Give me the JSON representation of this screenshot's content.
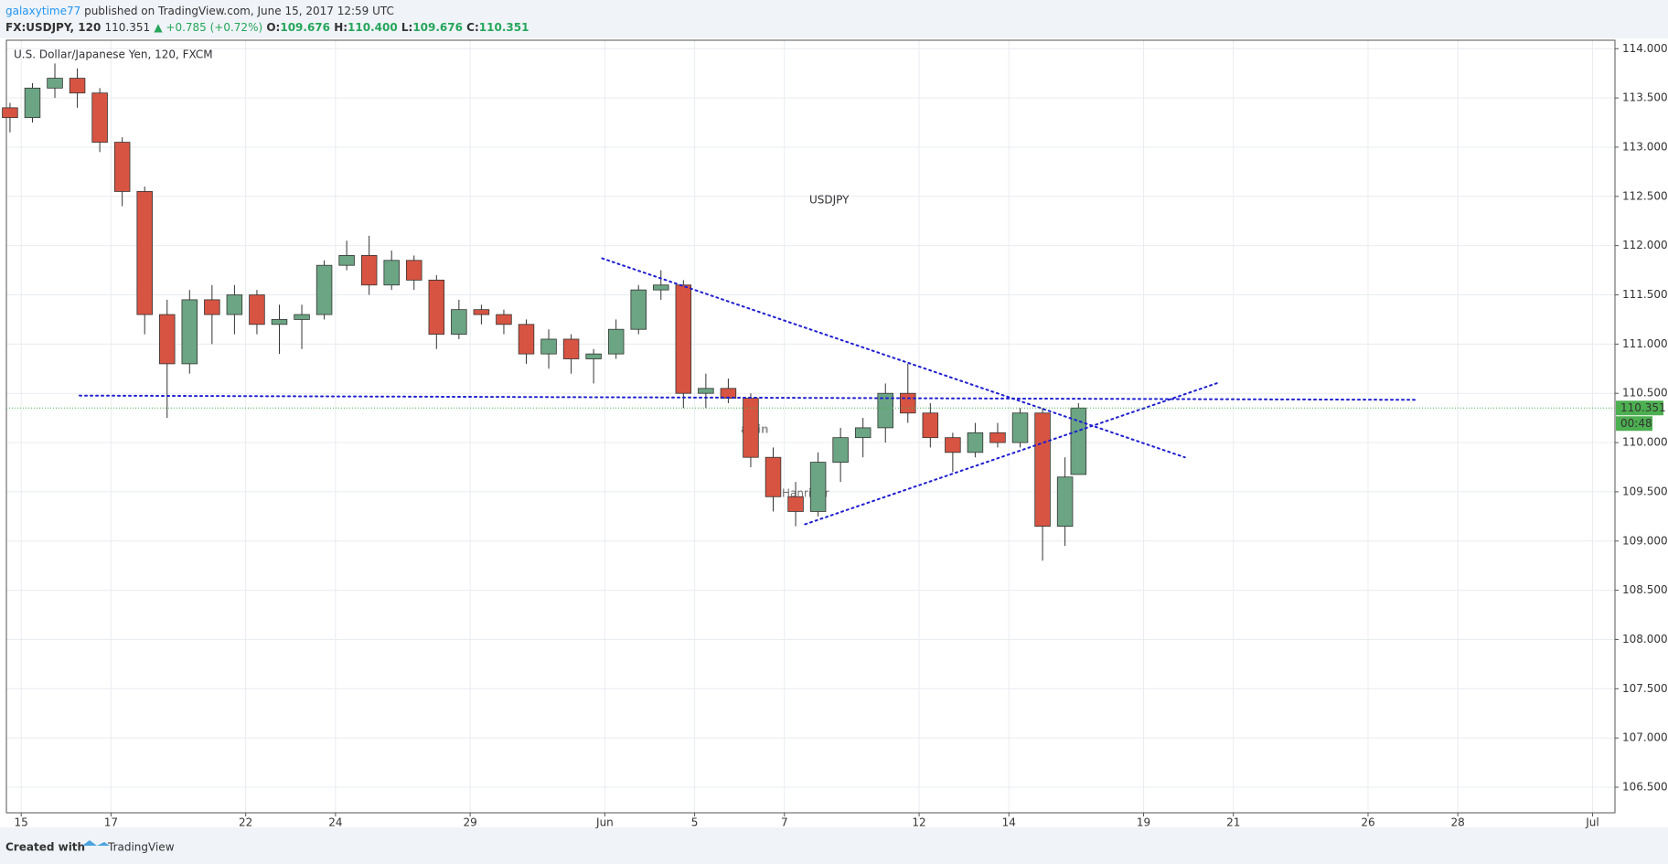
{
  "header": {
    "user": "galaxytime77",
    "published": "published on TradingView.com, June 15, 2017 12:59 UTC",
    "symbol": "FX:USDJPY, 120",
    "price": "110.351",
    "change": "▲ +0.785 (+0.72%)",
    "ohlc": [
      {
        "label": "O:",
        "value": "109.676"
      },
      {
        "label": "H:",
        "value": "110.400"
      },
      {
        "label": "L:",
        "value": "109.676"
      },
      {
        "label": "C:",
        "value": "110.351"
      }
    ]
  },
  "footer": {
    "created": "Created with",
    "brand": "TradingView"
  },
  "chart_data": {
    "type": "candlestick",
    "title": "U.S. Dollar/Japanese Yen, 120, FXCM",
    "annotation": "USDJPY",
    "watermark": [
      "altin",
      "Hanriver"
    ],
    "up_color": "#6ba583",
    "down_color": "#d75442",
    "line_color": "#1f1fd0",
    "last_color": "#4caf50",
    "grid": true,
    "x": [
      -0.25,
      0.25,
      0.75,
      1.25,
      1.75,
      2.25,
      2.75,
      3.25,
      3.75,
      4.25,
      4.75,
      5.25,
      5.75,
      6.25,
      6.75,
      7.25,
      7.75,
      8.25,
      8.75,
      9.25,
      9.75,
      10.25,
      10.75,
      11.25,
      11.75,
      12.25,
      12.75,
      13.25,
      13.75,
      14.25,
      14.75,
      15.25,
      15.75,
      16.25,
      16.75,
      17.25,
      17.75,
      18.25,
      18.75,
      19.25,
      19.75,
      20.25,
      20.75,
      21.25,
      21.75,
      22.25,
      22.75,
      23.25,
      23.55
    ],
    "open": [
      113.4,
      113.3,
      113.6,
      113.7,
      113.55,
      113.05,
      112.55,
      111.3,
      110.8,
      111.45,
      111.3,
      111.5,
      111.2,
      111.25,
      111.3,
      111.8,
      111.9,
      111.6,
      111.85,
      111.65,
      111.1,
      111.35,
      111.3,
      111.2,
      110.9,
      111.05,
      110.85,
      110.9,
      111.15,
      111.55,
      111.6,
      110.5,
      110.55,
      110.45,
      109.85,
      109.45,
      109.3,
      109.8,
      110.05,
      110.15,
      110.5,
      110.3,
      110.05,
      109.9,
      110.1,
      110.0,
      110.3,
      109.15,
      109.676
    ],
    "high": [
      113.45,
      113.65,
      113.85,
      113.8,
      113.6,
      113.1,
      112.6,
      111.45,
      111.55,
      111.6,
      111.6,
      111.55,
      111.4,
      111.4,
      111.85,
      112.05,
      112.1,
      111.95,
      111.9,
      111.7,
      111.45,
      111.4,
      111.35,
      111.25,
      111.15,
      111.1,
      110.95,
      111.25,
      111.6,
      111.75,
      111.65,
      110.7,
      110.65,
      110.5,
      109.95,
      109.6,
      109.9,
      110.15,
      110.25,
      110.6,
      110.8,
      110.4,
      110.1,
      110.2,
      110.2,
      110.35,
      110.35,
      109.85,
      110.4
    ],
    "low": [
      113.15,
      113.25,
      113.5,
      113.4,
      112.95,
      112.4,
      111.1,
      110.25,
      110.7,
      111.0,
      111.1,
      111.1,
      110.9,
      110.95,
      111.25,
      111.75,
      111.5,
      111.55,
      111.55,
      110.95,
      111.05,
      111.2,
      111.1,
      110.8,
      110.75,
      110.7,
      110.6,
      110.85,
      111.1,
      111.45,
      110.35,
      110.35,
      110.4,
      109.75,
      109.3,
      109.15,
      109.25,
      109.6,
      109.85,
      110.0,
      110.2,
      109.95,
      109.7,
      109.85,
      109.95,
      109.95,
      108.8,
      108.95,
      109.676
    ],
    "close": [
      113.3,
      113.6,
      113.7,
      113.55,
      113.05,
      112.55,
      111.3,
      110.8,
      111.45,
      111.3,
      111.5,
      111.2,
      111.25,
      111.3,
      111.8,
      111.9,
      111.6,
      111.85,
      111.65,
      111.1,
      111.35,
      111.3,
      111.2,
      110.9,
      111.05,
      110.85,
      110.9,
      111.15,
      111.55,
      111.6,
      110.5,
      110.55,
      110.45,
      109.85,
      109.45,
      109.3,
      109.8,
      110.05,
      110.15,
      110.5,
      110.3,
      110.05,
      109.9,
      110.1,
      110.0,
      110.3,
      109.15,
      109.65,
      110.351
    ],
    "trendlines": [
      {
        "points": [
          [
            1.3,
            110.477
          ],
          [
            31.04,
            110.434
          ]
        ]
      },
      {
        "points": [
          [
            12.94,
            111.871
          ],
          [
            25.92,
            109.85
          ]
        ]
      },
      {
        "points": [
          [
            17.46,
            109.17
          ],
          [
            26.68,
            110.61
          ]
        ]
      }
    ],
    "last_price": {
      "value": 110.351,
      "label": "110.351"
    },
    "countdown": "00:48",
    "xlim": [
      -0.33,
      35.5
    ],
    "xticks": [
      {
        "value": 0,
        "label": "15"
      },
      {
        "value": 2,
        "label": "17"
      },
      {
        "value": 5,
        "label": "22"
      },
      {
        "value": 7,
        "label": "24"
      },
      {
        "value": 10,
        "label": "29"
      },
      {
        "value": 13,
        "label": "Jun"
      },
      {
        "value": 15,
        "label": "5"
      },
      {
        "value": 17,
        "label": "7"
      },
      {
        "value": 20,
        "label": "12"
      },
      {
        "value": 22,
        "label": "14"
      },
      {
        "value": 25,
        "label": "19"
      },
      {
        "value": 27,
        "label": "21"
      },
      {
        "value": 30,
        "label": "26"
      },
      {
        "value": 32,
        "label": "28"
      },
      {
        "value": 35,
        "label": "Jul"
      }
    ],
    "ylim": [
      106.24,
      114.086
    ],
    "yticks": [
      {
        "value": 106.5,
        "label": "106.500"
      },
      {
        "value": 107,
        "label": "107.000"
      },
      {
        "value": 107.5,
        "label": "107.500"
      },
      {
        "value": 108,
        "label": "108.000"
      },
      {
        "value": 108.5,
        "label": "108.500"
      },
      {
        "value": 109,
        "label": "109.000"
      },
      {
        "value": 109.5,
        "label": "109.500"
      },
      {
        "value": 110,
        "label": "110.000"
      },
      {
        "value": 110.5,
        "label": "110.500"
      },
      {
        "value": 111,
        "label": "111.000"
      },
      {
        "value": 111.5,
        "label": "111.500"
      },
      {
        "value": 112,
        "label": "112.000"
      },
      {
        "value": 112.5,
        "label": "112.500"
      },
      {
        "value": 113,
        "label": "113.000"
      },
      {
        "value": 113.5,
        "label": "113.500"
      },
      {
        "value": 114,
        "label": "114.000"
      }
    ]
  }
}
